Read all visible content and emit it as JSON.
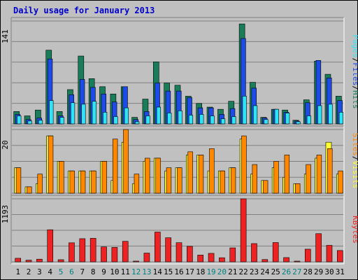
{
  "title": "Daily usage for January 2013",
  "colors": {
    "background": "#c0c0c0",
    "panel": "#c0c0c0",
    "grid": "#808080",
    "title": "#0000cc",
    "hits": "#197d59",
    "files": "#1d4be8",
    "pages": "#2ee5f8",
    "visits": "#ffff33",
    "sites": "#ff8800",
    "kbytes": "#ee2222",
    "weekend_day": "#008080",
    "weekday_day": "#000000"
  },
  "chart_data": {
    "type": "bar",
    "categories": [
      "1",
      "2",
      "3",
      "4",
      "5",
      "6",
      "7",
      "8",
      "9",
      "10",
      "11",
      "12",
      "13",
      "14",
      "15",
      "16",
      "17",
      "18",
      "19",
      "20",
      "21",
      "22",
      "23",
      "24",
      "25",
      "26",
      "27",
      "28",
      "29",
      "30",
      "31"
    ],
    "weekend_days": [
      "5",
      "6",
      "12",
      "13",
      "19",
      "20",
      "26",
      "27"
    ],
    "panels": [
      {
        "name": "pages-files-hits",
        "ymax_label": "141",
        "ymax": 141,
        "legend": [
          {
            "text": "Pages",
            "color": "#2ee5f8"
          },
          {
            "text": "/",
            "color": "#000000"
          },
          {
            "text": "Files",
            "color": "#1d4be8"
          },
          {
            "text": "/",
            "color": "#000000"
          },
          {
            "text": "Hits",
            "color": "#197d59"
          }
        ],
        "series": [
          {
            "name": "Hits",
            "color": "#197d59",
            "values": [
              17,
              11,
              19,
              101,
              17,
              47,
              93,
              62,
              51,
              41,
              51,
              9,
              34,
              85,
              56,
              53,
              38,
              28,
              23,
              20,
              31,
              137,
              57,
              9,
              20,
              19,
              5,
              33,
              86,
              68,
              38
            ]
          },
          {
            "name": "Files",
            "color": "#1d4be8",
            "values": [
              13,
              6,
              8,
              89,
              11,
              40,
              61,
              50,
              41,
              30,
              51,
              6,
              17,
              56,
              45,
              45,
              36,
              22,
              22,
              13,
              21,
              117,
              49,
              8,
              20,
              16,
              4,
              29,
              87,
              63,
              32
            ]
          },
          {
            "name": "Pages",
            "color": "#2ee5f8",
            "values": [
              11,
              4,
              5,
              32,
              9,
              29,
              27,
              31,
              16,
              10,
              22,
              3,
              11,
              23,
              15,
              18,
              12,
              13,
              11,
              7,
              10,
              38,
              25,
              6,
              20,
              15,
              3,
              11,
              25,
              27,
              16
            ]
          }
        ]
      },
      {
        "name": "sites-visits",
        "ymax_label": "20",
        "ymax": 20,
        "legend": [
          {
            "text": "Sites",
            "color": "#ff8800"
          },
          {
            "text": "/",
            "color": "#000000"
          },
          {
            "text": "Visits",
            "color": "#ffff33"
          }
        ],
        "series": [
          {
            "name": "Visits",
            "color": "#ffff33",
            "values": [
              8,
              2,
              3,
              18,
              10,
              7,
              7,
              7,
              10,
              4,
              16,
              3,
              10,
              11,
              7,
              8,
              12,
              12,
              7,
              7,
              8,
              17,
              6,
              4,
              8,
              5,
              3,
              6,
              11,
              16,
              6
            ]
          },
          {
            "name": "Sites",
            "color": "#ff8800",
            "values": [
              8,
              2,
              6,
              18,
              10,
              7,
              7,
              7,
              10,
              17,
              20,
              6,
              11,
              11,
              8,
              8,
              13,
              12,
              14,
              7,
              8,
              18,
              9,
              4,
              10,
              12,
              3,
              9,
              12,
              14,
              7
            ]
          }
        ]
      },
      {
        "name": "kbytes",
        "ymax_label": "1193",
        "ymax": 1193,
        "legend": [
          {
            "text": "KBytes",
            "color": "#ee2222"
          }
        ],
        "series": [
          {
            "name": "KBytes",
            "color": "#ee2222",
            "values": [
              67,
              31,
              50,
              607,
              40,
              360,
              438,
              445,
              282,
              273,
              388,
              13,
              165,
              563,
              456,
              362,
              293,
              128,
              160,
              77,
              264,
              1193,
              345,
              43,
              365,
              80,
              6,
              239,
              533,
              312,
              214
            ]
          }
        ]
      }
    ]
  }
}
